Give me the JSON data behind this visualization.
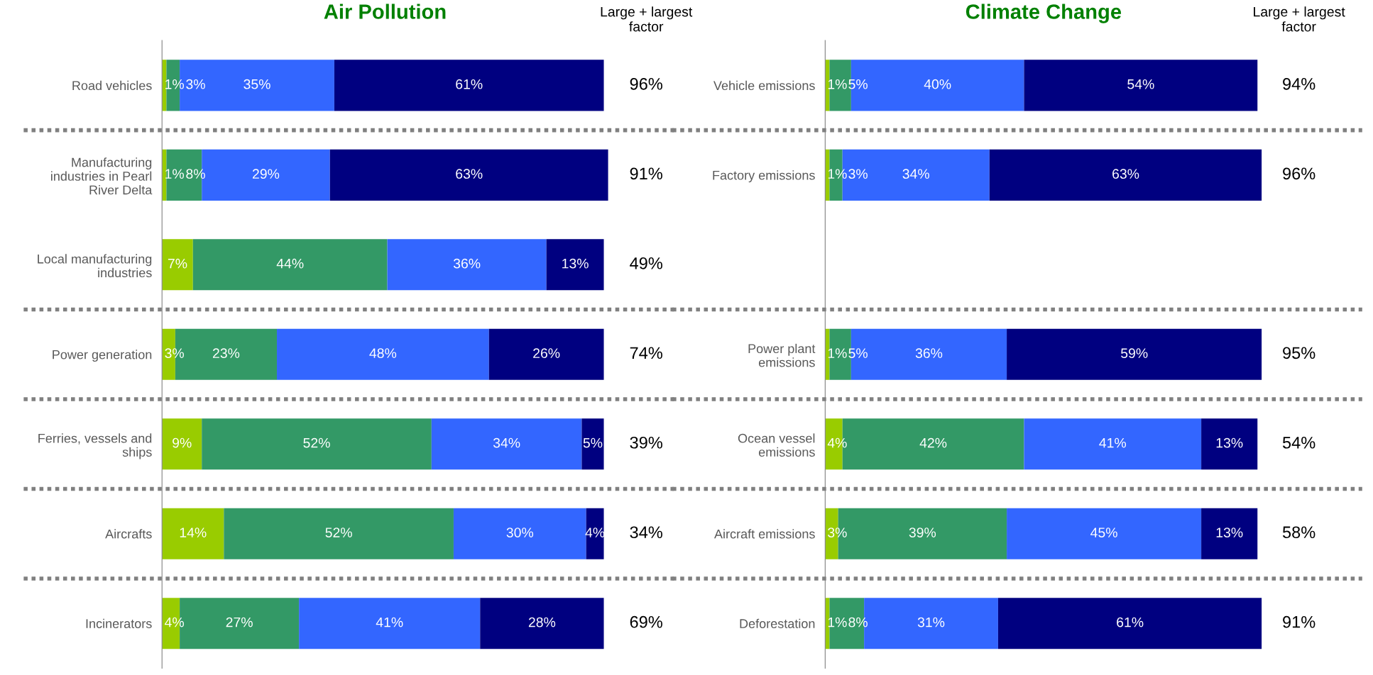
{
  "chart_data": [
    {
      "type": "bar",
      "orientation": "horizontal",
      "stacked": true,
      "title": "Air Pollution",
      "tick_labels": "y",
      "categories": [
        "Road vehicles",
        "Manufacturing\nindustries in Pearl\nRiver Delta",
        "Local manufacturing\nindustries",
        "Power generation",
        "Ferries, vessels and\nships",
        "Aircrafts",
        "Incinerators"
      ],
      "series": [
        {
          "color": "#99cc00",
          "values": [
            1,
            1,
            7,
            3,
            9,
            14,
            4
          ],
          "value_labels": [
            "1%",
            "1%",
            "7%",
            "3%",
            "9%",
            "14%",
            "4%"
          ]
        },
        {
          "color": "#339966",
          "values": [
            3,
            8,
            44,
            23,
            52,
            52,
            27
          ],
          "value_labels": [
            "3%",
            "8%",
            "44%",
            "23%",
            "52%",
            "52%",
            "27%"
          ]
        },
        {
          "color": "#3366ff",
          "values": [
            35,
            29,
            36,
            48,
            34,
            30,
            41
          ],
          "value_labels": [
            "35%",
            "29%",
            "36%",
            "48%",
            "34%",
            "30%",
            "41%"
          ]
        },
        {
          "color": "#000080",
          "values": [
            61,
            63,
            13,
            26,
            5,
            4,
            28
          ],
          "value_labels": [
            "61%",
            "63%",
            "13%",
            "26%",
            "5%",
            "4%",
            "28%"
          ]
        }
      ],
      "annotations": [
        "Large + largest\nfactor",
        "96%",
        "91%",
        "49%",
        "74%",
        "39%",
        "34%",
        "69%"
      ]
    },
    {
      "type": "bar",
      "orientation": "horizontal",
      "stacked": true,
      "title": "Climate Change",
      "tick_labels": "y",
      "categories": [
        "Vehicle emissions",
        "Factory emissions",
        null,
        "Power plant\nemissions",
        "Ocean vessel\nemissions",
        "Aircraft emissions",
        "Deforestation"
      ],
      "series": [
        {
          "color": "#99cc00",
          "values": [
            1,
            1,
            null,
            1,
            4,
            3,
            1
          ],
          "value_labels": [
            "1%",
            "1%",
            null,
            "1%",
            "4%",
            "3%",
            "1%"
          ]
        },
        {
          "color": "#339966",
          "values": [
            5,
            3,
            null,
            5,
            42,
            39,
            8
          ],
          "value_labels": [
            "5%",
            "3%",
            null,
            "5%",
            "42%",
            "39%",
            "8%"
          ]
        },
        {
          "color": "#3366ff",
          "values": [
            40,
            34,
            null,
            36,
            41,
            45,
            31
          ],
          "value_labels": [
            "40%",
            "34%",
            null,
            "36%",
            "41%",
            "45%",
            "31%"
          ]
        },
        {
          "color": "#000080",
          "values": [
            54,
            63,
            null,
            59,
            13,
            13,
            61
          ],
          "value_labels": [
            "54%",
            "63%",
            null,
            "59%",
            "13%",
            "13%",
            "61%"
          ]
        }
      ],
      "annotations": [
        "Large + largest\nfactor",
        "94%",
        "96%",
        "95%",
        "54%",
        "58%",
        "91%"
      ]
    }
  ]
}
